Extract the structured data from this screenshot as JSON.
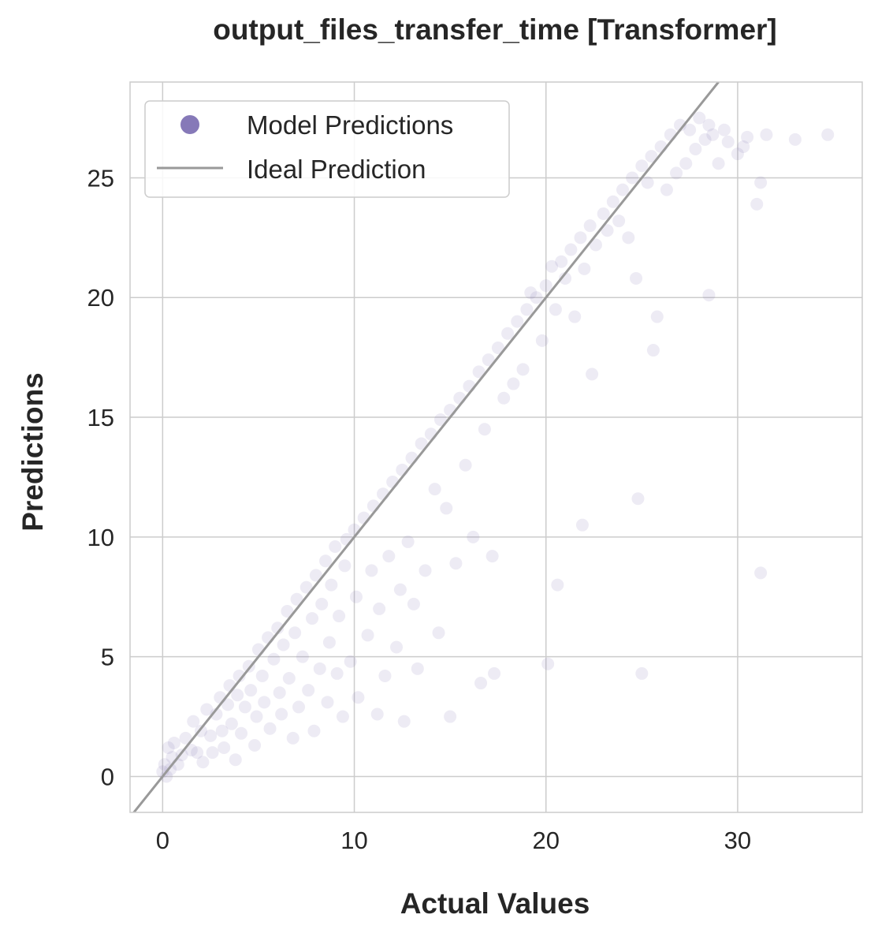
{
  "chart_data": {
    "type": "scatter",
    "title": "output_files_transfer_time [Transformer]",
    "xlabel": "Actual Values",
    "ylabel": "Predictions",
    "xlim": [
      -1.7,
      36.5
    ],
    "ylim": [
      -1.5,
      29.0
    ],
    "xticks": [
      0,
      10,
      20,
      30
    ],
    "yticks": [
      0,
      5,
      10,
      15,
      20,
      25
    ],
    "grid": true,
    "legend_position": "top-left",
    "colors": {
      "points": "#8679b8",
      "ideal_line": "#999999",
      "grid": "#cccccc",
      "frame": "#cccccc"
    },
    "series": [
      {
        "name": "Model Predictions",
        "kind": "scatter",
        "point_alpha": 0.15,
        "points": [
          [
            0.0,
            0.2
          ],
          [
            0.1,
            0.5
          ],
          [
            0.2,
            0.0
          ],
          [
            0.3,
            1.2
          ],
          [
            0.4,
            0.3
          ],
          [
            0.5,
            0.8
          ],
          [
            0.6,
            1.4
          ],
          [
            0.8,
            0.5
          ],
          [
            1.0,
            0.9
          ],
          [
            1.2,
            1.6
          ],
          [
            1.5,
            1.1
          ],
          [
            1.6,
            2.3
          ],
          [
            1.8,
            1.0
          ],
          [
            2.0,
            1.9
          ],
          [
            2.1,
            0.6
          ],
          [
            2.3,
            2.8
          ],
          [
            2.5,
            1.7
          ],
          [
            2.6,
            1.0
          ],
          [
            2.8,
            2.6
          ],
          [
            3.0,
            3.3
          ],
          [
            3.1,
            1.9
          ],
          [
            3.2,
            1.2
          ],
          [
            3.4,
            3.0
          ],
          [
            3.5,
            3.8
          ],
          [
            3.6,
            2.2
          ],
          [
            3.8,
            0.7
          ],
          [
            3.9,
            3.4
          ],
          [
            4.0,
            4.2
          ],
          [
            4.1,
            1.8
          ],
          [
            4.3,
            2.9
          ],
          [
            4.5,
            4.6
          ],
          [
            4.6,
            3.6
          ],
          [
            4.8,
            1.3
          ],
          [
            4.9,
            2.5
          ],
          [
            5.0,
            5.3
          ],
          [
            5.2,
            4.2
          ],
          [
            5.3,
            3.1
          ],
          [
            5.5,
            5.8
          ],
          [
            5.6,
            2.0
          ],
          [
            5.8,
            4.9
          ],
          [
            6.0,
            6.2
          ],
          [
            6.1,
            3.5
          ],
          [
            6.2,
            2.6
          ],
          [
            6.3,
            5.5
          ],
          [
            6.5,
            6.9
          ],
          [
            6.6,
            4.1
          ],
          [
            6.8,
            1.6
          ],
          [
            6.9,
            6.0
          ],
          [
            7.0,
            7.4
          ],
          [
            7.1,
            2.9
          ],
          [
            7.3,
            5.0
          ],
          [
            7.5,
            7.9
          ],
          [
            7.6,
            3.6
          ],
          [
            7.8,
            6.6
          ],
          [
            7.9,
            1.9
          ],
          [
            8.0,
            8.4
          ],
          [
            8.2,
            4.5
          ],
          [
            8.3,
            7.2
          ],
          [
            8.5,
            9.0
          ],
          [
            8.6,
            3.1
          ],
          [
            8.7,
            5.6
          ],
          [
            8.8,
            8.0
          ],
          [
            9.0,
            9.6
          ],
          [
            9.1,
            4.3
          ],
          [
            9.2,
            6.7
          ],
          [
            9.4,
            2.5
          ],
          [
            9.5,
            8.8
          ],
          [
            9.6,
            9.9
          ],
          [
            9.8,
            4.8
          ],
          [
            10.0,
            10.3
          ],
          [
            10.1,
            7.5
          ],
          [
            10.2,
            3.3
          ],
          [
            10.5,
            10.8
          ],
          [
            10.7,
            5.9
          ],
          [
            10.9,
            8.6
          ],
          [
            11.0,
            11.3
          ],
          [
            11.2,
            2.6
          ],
          [
            11.3,
            7.0
          ],
          [
            11.5,
            11.8
          ],
          [
            11.6,
            4.2
          ],
          [
            11.8,
            9.2
          ],
          [
            12.0,
            12.3
          ],
          [
            12.2,
            5.4
          ],
          [
            12.4,
            7.8
          ],
          [
            12.5,
            12.8
          ],
          [
            12.6,
            2.3
          ],
          [
            12.8,
            9.8
          ],
          [
            13.0,
            13.3
          ],
          [
            13.1,
            7.2
          ],
          [
            13.3,
            4.5
          ],
          [
            13.5,
            13.9
          ],
          [
            13.7,
            8.6
          ],
          [
            14.0,
            14.3
          ],
          [
            14.2,
            12.0
          ],
          [
            14.4,
            6.0
          ],
          [
            14.5,
            14.9
          ],
          [
            14.8,
            11.2
          ],
          [
            15.0,
            15.3
          ],
          [
            15.0,
            2.5
          ],
          [
            15.3,
            8.9
          ],
          [
            15.5,
            15.8
          ],
          [
            15.8,
            13.0
          ],
          [
            16.0,
            16.3
          ],
          [
            16.2,
            10.0
          ],
          [
            16.5,
            16.9
          ],
          [
            16.6,
            3.9
          ],
          [
            16.8,
            14.5
          ],
          [
            17.0,
            17.4
          ],
          [
            17.2,
            9.2
          ],
          [
            17.3,
            4.3
          ],
          [
            17.5,
            17.9
          ],
          [
            17.8,
            15.8
          ],
          [
            18.0,
            18.5
          ],
          [
            18.3,
            16.4
          ],
          [
            18.5,
            19.0
          ],
          [
            18.8,
            17.0
          ],
          [
            19.0,
            19.5
          ],
          [
            19.2,
            20.2
          ],
          [
            19.5,
            20.0
          ],
          [
            19.8,
            18.2
          ],
          [
            20.0,
            20.5
          ],
          [
            20.1,
            4.7
          ],
          [
            20.3,
            21.3
          ],
          [
            20.5,
            19.5
          ],
          [
            20.6,
            8.0
          ],
          [
            20.8,
            21.5
          ],
          [
            21.0,
            20.8
          ],
          [
            21.3,
            22.0
          ],
          [
            21.5,
            19.2
          ],
          [
            21.8,
            22.5
          ],
          [
            21.9,
            10.5
          ],
          [
            22.0,
            21.2
          ],
          [
            22.3,
            23.0
          ],
          [
            22.4,
            16.8
          ],
          [
            22.6,
            22.2
          ],
          [
            23.0,
            23.5
          ],
          [
            23.2,
            22.8
          ],
          [
            23.5,
            24.0
          ],
          [
            23.8,
            23.2
          ],
          [
            24.0,
            24.5
          ],
          [
            24.3,
            22.5
          ],
          [
            24.5,
            25.0
          ],
          [
            24.7,
            20.8
          ],
          [
            24.8,
            11.6
          ],
          [
            25.0,
            25.5
          ],
          [
            25.0,
            4.3
          ],
          [
            25.3,
            24.8
          ],
          [
            25.5,
            25.9
          ],
          [
            25.6,
            17.8
          ],
          [
            25.8,
            19.2
          ],
          [
            26.0,
            26.3
          ],
          [
            26.3,
            24.5
          ],
          [
            26.5,
            26.8
          ],
          [
            26.8,
            25.2
          ],
          [
            27.0,
            27.2
          ],
          [
            27.3,
            25.6
          ],
          [
            27.5,
            27.0
          ],
          [
            27.8,
            26.2
          ],
          [
            28.0,
            27.5
          ],
          [
            28.3,
            26.6
          ],
          [
            28.5,
            27.2
          ],
          [
            28.5,
            20.1
          ],
          [
            28.7,
            26.8
          ],
          [
            29.0,
            25.6
          ],
          [
            29.3,
            27.0
          ],
          [
            29.5,
            26.5
          ],
          [
            30.0,
            26.0
          ],
          [
            30.3,
            26.3
          ],
          [
            30.5,
            26.7
          ],
          [
            31.0,
            23.9
          ],
          [
            31.2,
            24.8
          ],
          [
            31.2,
            8.5
          ],
          [
            31.5,
            26.8
          ],
          [
            33.0,
            26.6
          ],
          [
            34.7,
            26.8
          ]
        ]
      },
      {
        "name": "Ideal Prediction",
        "kind": "line",
        "x": [
          -1.7,
          29.0
        ],
        "y": [
          -1.7,
          29.0
        ]
      }
    ]
  }
}
